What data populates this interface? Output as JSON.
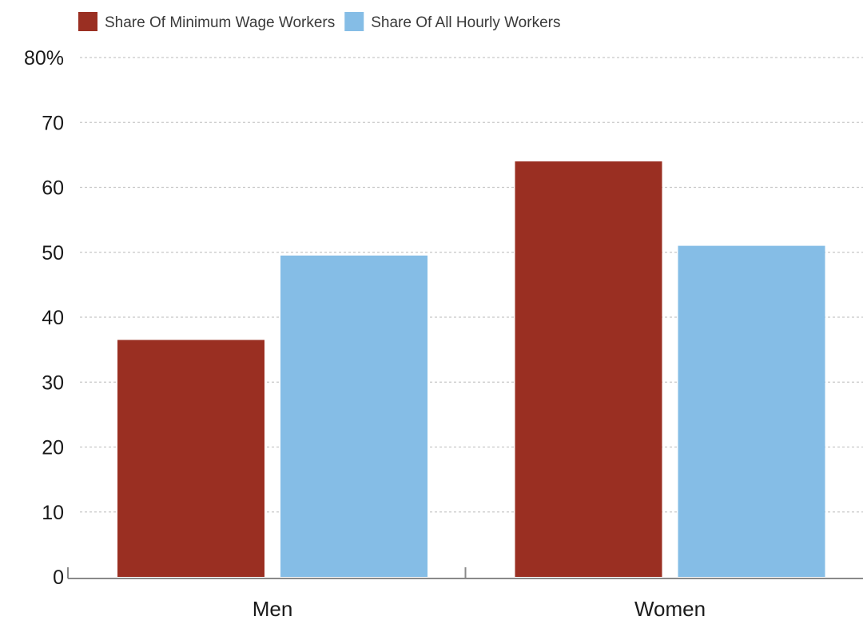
{
  "chart_data": {
    "type": "bar",
    "categories": [
      "Men",
      "Women"
    ],
    "series": [
      {
        "name": "Share Of Minimum Wage Workers",
        "values": [
          36.5,
          64
        ],
        "color": "#9a2f22"
      },
      {
        "name": "Share Of All Hourly Workers",
        "values": [
          49.5,
          51
        ],
        "color": "#85bde6"
      }
    ],
    "y_ticks": [
      {
        "value": 0,
        "label": "0"
      },
      {
        "value": 10,
        "label": "10"
      },
      {
        "value": 20,
        "label": "20"
      },
      {
        "value": 30,
        "label": "30"
      },
      {
        "value": 40,
        "label": "40"
      },
      {
        "value": 50,
        "label": "50"
      },
      {
        "value": 60,
        "label": "60"
      },
      {
        "value": 70,
        "label": "70"
      },
      {
        "value": 80,
        "label": "80%"
      }
    ],
    "ylim": [
      0,
      80
    ],
    "grid": true,
    "legend_position": "top-left"
  }
}
